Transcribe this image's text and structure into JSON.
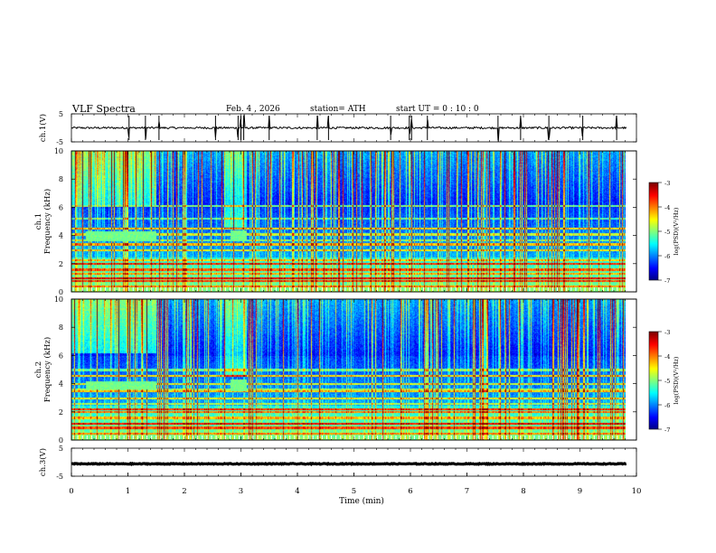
{
  "header": {
    "title": "VLF  Spectra",
    "date": "Feb. 4  , 2026",
    "station": "station= ATH",
    "start": "start  UT  =    0  : 10 : 0"
  },
  "chart_data": [
    {
      "type": "line",
      "name": "ch1-waveform",
      "ylabel": "ch.1(V)",
      "ylim": [
        -5,
        5
      ],
      "yticks": [
        "5",
        "-5"
      ],
      "xlim": [
        0,
        10
      ],
      "baseline_v": 0.0,
      "noise_v": 0.35,
      "spikes_min": [
        1.02,
        1.31,
        1.55,
        2.55,
        2.95,
        3.0,
        3.05,
        3.5,
        4.35,
        4.55,
        5.65,
        5.98,
        6.02,
        6.3,
        7.55,
        7.95,
        8.45,
        9.05,
        9.65
      ]
    },
    {
      "type": "heatmap",
      "name": "ch1-spectrogram",
      "ylabel": "ch.1\nFrequency  (kHz)",
      "ylim": [
        0,
        10
      ],
      "yticks": [
        "0",
        "2",
        "4",
        "6",
        "8",
        "10"
      ],
      "xlim": [
        0,
        9.8
      ],
      "colorbar": {
        "label": "log(PSD)(V²/Hz)",
        "range": [
          -7,
          -3
        ],
        "ticks": [
          "-3",
          "-4",
          "-5",
          "-6",
          "-7"
        ]
      },
      "bands_khz": [
        0.4,
        0.8,
        1.0,
        1.3,
        1.6,
        2.0,
        2.3,
        3.0,
        3.4,
        3.7,
        4.1,
        4.5,
        5.2,
        6.1
      ],
      "bursts": [
        {
          "t0": 0.25,
          "t1": 1.5,
          "f0": 3.6,
          "f1": 4.3
        },
        {
          "t0": 2.8,
          "t1": 3.1,
          "f0": 3.6,
          "f1": 4.4
        }
      ]
    },
    {
      "type": "heatmap",
      "name": "ch2-spectrogram",
      "ylabel": "ch.2\nFrequency  (kHz)",
      "ylim": [
        0,
        10
      ],
      "yticks": [
        "0",
        "2",
        "4",
        "6",
        "8",
        "10"
      ],
      "xlim": [
        0,
        9.8
      ],
      "colorbar": {
        "label": "log(PSD)(V²/Hz)",
        "range": [
          -7,
          -3
        ],
        "ticks": [
          "-3",
          "-4",
          "-5",
          "-6",
          "-7"
        ]
      },
      "bands_khz": [
        0.5,
        0.9,
        1.2,
        1.6,
        2.0,
        2.2,
        2.6,
        3.0,
        3.5,
        3.6,
        4.0,
        4.6,
        5.0
      ],
      "bursts": [
        {
          "t0": 0.25,
          "t1": 1.5,
          "f0": 3.6,
          "f1": 4.2
        },
        {
          "t0": 2.8,
          "t1": 3.1,
          "f0": 3.5,
          "f1": 4.3
        }
      ]
    },
    {
      "type": "line",
      "name": "ch3-waveform",
      "ylabel": "ch.3(V)",
      "ylim": [
        -5,
        5
      ],
      "yticks": [
        "5",
        "-5"
      ],
      "xlim": [
        0,
        10
      ],
      "baseline_v": -0.6,
      "noise_v": 0.15,
      "spikes_min": []
    }
  ],
  "xaxis": {
    "label": "Time  (min)",
    "ticks": [
      "0",
      "1",
      "2",
      "3",
      "4",
      "5",
      "6",
      "7",
      "8",
      "9",
      "10"
    ],
    "range": [
      0,
      10
    ]
  }
}
